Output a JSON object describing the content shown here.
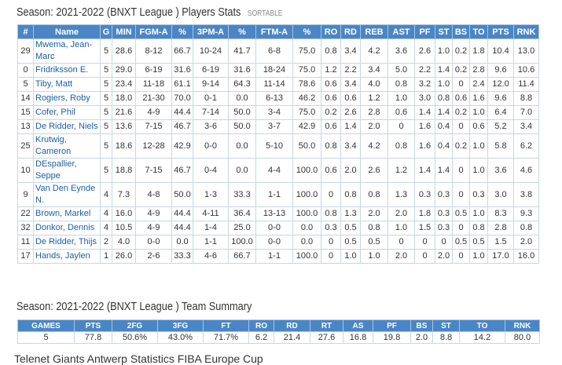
{
  "players": {
    "title": "Season: 2021-2022 (BNXT League ) Players Stats",
    "badge": "SORTABLE",
    "headers": [
      "#",
      "Name",
      "G",
      "MIN",
      "FGM-A",
      "%",
      "3PM-A",
      "%",
      "FTM-A",
      "%",
      "RO",
      "RD",
      "REB",
      "AST",
      "PF",
      "ST",
      "BS",
      "TO",
      "PTS",
      "RNK"
    ],
    "rows": [
      [
        "29",
        "Mwema, Jean-Marc",
        "5",
        "28.6",
        "8-12",
        "66.7",
        "10-24",
        "41.7",
        "6-8",
        "75.0",
        "0.8",
        "3.4",
        "4.2",
        "3.6",
        "2.6",
        "1.0",
        "0.2",
        "1.8",
        "10.4",
        "13.0"
      ],
      [
        "0",
        "Fridriksson E.",
        "5",
        "29.0",
        "6-19",
        "31.6",
        "6-19",
        "31.6",
        "18-24",
        "75.0",
        "1.2",
        "2.2",
        "3.4",
        "5.0",
        "2.2",
        "1.4",
        "0.2",
        "2.8",
        "9.6",
        "10.6"
      ],
      [
        "5",
        "Tiby, Matt",
        "5",
        "23.4",
        "11-18",
        "61.1",
        "9-14",
        "64.3",
        "11-14",
        "78.6",
        "0.6",
        "3.4",
        "4.0",
        "0.8",
        "3.2",
        "1.0",
        "0",
        "2.4",
        "12.0",
        "11.4"
      ],
      [
        "14",
        "Rogiers, Roby",
        "5",
        "18.0",
        "21-30",
        "70.0",
        "0-1",
        "0.0",
        "6-13",
        "46.2",
        "0.6",
        "0.6",
        "1.2",
        "1.0",
        "3.0",
        "0.8",
        "0.6",
        "1.6",
        "9.6",
        "8.8"
      ],
      [
        "15",
        "Cofer, Phil",
        "5",
        "21.6",
        "4-9",
        "44.4",
        "7-14",
        "50.0",
        "3-4",
        "75.0",
        "0.2",
        "2.6",
        "2.8",
        "0.6",
        "1.4",
        "1.4",
        "0.2",
        "1.0",
        "6.4",
        "7.0"
      ],
      [
        "13",
        "De Ridder, Niels",
        "5",
        "13.6",
        "7-15",
        "46.7",
        "3-6",
        "50.0",
        "3-7",
        "42.9",
        "0.6",
        "1.4",
        "2.0",
        "0",
        "1.6",
        "0.4",
        "0",
        "0.6",
        "5.2",
        "3.4"
      ],
      [
        "25",
        "Krutwig, Cameron",
        "5",
        "18.6",
        "12-28",
        "42.9",
        "0-0",
        "0.0",
        "5-10",
        "50.0",
        "0.8",
        "3.4",
        "4.2",
        "0.8",
        "1.6",
        "0.4",
        "0.2",
        "1.0",
        "5.8",
        "6.2"
      ],
      [
        "10",
        "DEspallier, Seppe",
        "5",
        "18.8",
        "7-15",
        "46.7",
        "0-4",
        "0.0",
        "4-4",
        "100.0",
        "0.6",
        "2.0",
        "2.6",
        "1.2",
        "1.4",
        "1.4",
        "0",
        "1.0",
        "3.6",
        "4.6"
      ],
      [
        "9",
        "Van Den Eynde N.",
        "4",
        "7.3",
        "4-8",
        "50.0",
        "1-3",
        "33.3",
        "1-1",
        "100.0",
        "0",
        "0.8",
        "0.8",
        "1.3",
        "0.3",
        "0.3",
        "0",
        "0.3",
        "3.0",
        "3.8"
      ],
      [
        "22",
        "Brown, Markel",
        "4",
        "16.0",
        "4-9",
        "44.4",
        "4-11",
        "36.4",
        "13-13",
        "100.0",
        "0.8",
        "1.3",
        "2.0",
        "2.0",
        "1.8",
        "0.3",
        "0.5",
        "1.0",
        "8.3",
        "9.3"
      ],
      [
        "32",
        "Donkor, Dennis",
        "4",
        "10.5",
        "4-9",
        "44.4",
        "1-4",
        "25.0",
        "0-0",
        "0.0",
        "0.3",
        "0.5",
        "0.8",
        "1.0",
        "1.5",
        "0.3",
        "0",
        "0.8",
        "2.8",
        "0.8"
      ],
      [
        "11",
        "De Ridder, Thijs",
        "2",
        "4.0",
        "0-0",
        "0.0",
        "1-1",
        "100.0",
        "0-0",
        "0.0",
        "0",
        "0.5",
        "0.5",
        "0",
        "0",
        "0",
        "0.5",
        "0.5",
        "1.5",
        "2.0"
      ],
      [
        "17",
        "Hands, Jaylen",
        "1",
        "26.0",
        "2-6",
        "33.3",
        "4-6",
        "66.7",
        "1-1",
        "100.0",
        "0",
        "1.0",
        "1.0",
        "2.0",
        "0",
        "2.0",
        "0",
        "1.0",
        "17.0",
        "16.0"
      ]
    ]
  },
  "team": {
    "title": "Season: 2021-2022 (BNXT League ) Team Summary",
    "headers": [
      "GAMES",
      "PTS",
      "2FG",
      "3FG",
      "FT",
      "RO",
      "RD",
      "RT",
      "AS",
      "PF",
      "BS",
      "ST",
      "TO",
      "RNK"
    ],
    "rows": [
      [
        "5",
        "77.8",
        "50.6%",
        "43.0%",
        "71.7%",
        "6.2",
        "21.4",
        "27.6",
        "16.8",
        "19.8",
        "2.0",
        "8.8",
        "14.2",
        "80.0"
      ]
    ]
  },
  "footer": {
    "text": "Telenet Giants Antwerp Statistics FIBA Europe Cup"
  }
}
